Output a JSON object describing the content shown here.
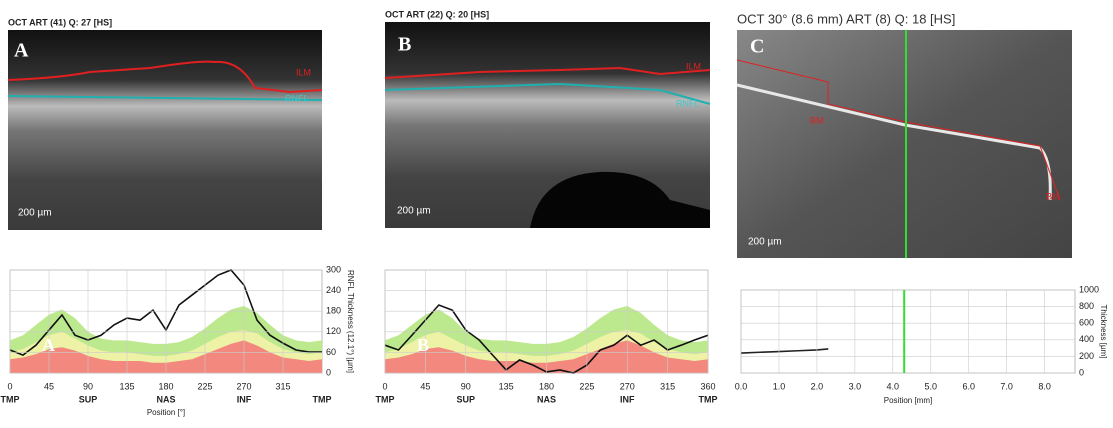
{
  "panels": [
    {
      "header": "OCT ART (41) Q: 27 [HS]",
      "letter": "A",
      "labels": [
        "ILM",
        "RNFL"
      ],
      "scale": "200 µm"
    },
    {
      "header": "OCT ART (22) Q: 20 [HS]",
      "letter": "B",
      "labels": [
        "ILM",
        "RNFL"
      ],
      "scale": "200 µm"
    },
    {
      "header": "OCT 30° (8.6 mm) ART (8) Q: 18 [HS]",
      "letter": "C",
      "labels": [
        "BM",
        "BM"
      ],
      "scale": "200 µm"
    }
  ],
  "chart_data": [
    {
      "type": "line",
      "annotation": "A",
      "xlim": [
        0,
        360
      ],
      "xticks": [
        0,
        45,
        90,
        135,
        180,
        225,
        270,
        315
      ],
      "xticks2": [
        {
          "value": 0,
          "label": "TMP"
        },
        {
          "value": 90,
          "label": "SUP"
        },
        {
          "value": 180,
          "label": "NAS"
        },
        {
          "value": 270,
          "label": "INF"
        },
        {
          "value": 360,
          "label": "TMP"
        }
      ],
      "x_label": "Position [°]",
      "y_label": "RNFL Thickness (12.1°) [µm]",
      "ylim": [
        0,
        300
      ],
      "yticks": [
        0,
        60,
        120,
        180,
        240,
        300
      ],
      "ytick_labels": true,
      "x": [
        0,
        15,
        30,
        45,
        60,
        75,
        90,
        105,
        120,
        135,
        150,
        165,
        180,
        195,
        210,
        225,
        240,
        255,
        270,
        285,
        300,
        315,
        330,
        345,
        360
      ],
      "series": [
        {
          "style": "area",
          "color": "#bde98e",
          "values": [
            95,
            110,
            140,
            170,
            185,
            160,
            120,
            100,
            95,
            95,
            90,
            85,
            85,
            90,
            105,
            130,
            160,
            185,
            195,
            175,
            140,
            110,
            95,
            90,
            95
          ]
        },
        {
          "style": "area",
          "color": "#eef2a6",
          "values": [
            60,
            70,
            90,
            110,
            120,
            100,
            80,
            65,
            60,
            60,
            55,
            50,
            50,
            55,
            65,
            85,
            105,
            120,
            125,
            115,
            90,
            70,
            60,
            55,
            60
          ]
        },
        {
          "style": "area",
          "color": "#f2887e",
          "values": [
            40,
            45,
            55,
            70,
            75,
            65,
            50,
            40,
            35,
            35,
            35,
            30,
            30,
            35,
            40,
            55,
            70,
            85,
            95,
            80,
            60,
            45,
            40,
            35,
            40
          ]
        },
        {
          "style": "line",
          "color": "#111111",
          "values": [
            67,
            52,
            81,
            125,
            169,
            110,
            96,
            110,
            140,
            160,
            154,
            183,
            125,
            198,
            227,
            256,
            285,
            300,
            256,
            154,
            110,
            87,
            67,
            61,
            61
          ]
        }
      ]
    },
    {
      "type": "line",
      "annotation": "B",
      "xlim": [
        0,
        360
      ],
      "xticks": [
        0,
        45,
        90,
        135,
        180,
        225,
        270,
        315,
        360
      ],
      "xticks2": [
        {
          "value": 0,
          "label": "TMP"
        },
        {
          "value": 90,
          "label": "SUP"
        },
        {
          "value": 180,
          "label": "NAS"
        },
        {
          "value": 270,
          "label": "INF"
        },
        {
          "value": 360,
          "label": "TMP"
        }
      ],
      "ylim": [
        0,
        300
      ],
      "yticks": [
        0,
        60,
        120,
        180,
        240,
        300
      ],
      "ytick_labels": false,
      "x": [
        0,
        15,
        30,
        45,
        60,
        75,
        90,
        105,
        120,
        135,
        150,
        165,
        180,
        195,
        210,
        225,
        240,
        255,
        270,
        285,
        300,
        315,
        330,
        345,
        360
      ],
      "series": [
        {
          "style": "area",
          "color": "#bde98e",
          "values": [
            95,
            110,
            140,
            170,
            185,
            160,
            120,
            100,
            95,
            95,
            90,
            85,
            85,
            90,
            105,
            130,
            160,
            185,
            195,
            175,
            140,
            110,
            95,
            90,
            95
          ]
        },
        {
          "style": "area",
          "color": "#eef2a6",
          "values": [
            60,
            70,
            90,
            110,
            120,
            100,
            80,
            65,
            60,
            60,
            55,
            50,
            50,
            55,
            65,
            85,
            105,
            120,
            125,
            115,
            90,
            70,
            60,
            55,
            60
          ]
        },
        {
          "style": "area",
          "color": "#f2887e",
          "values": [
            40,
            45,
            55,
            70,
            75,
            65,
            50,
            40,
            35,
            35,
            35,
            30,
            30,
            35,
            40,
            55,
            70,
            85,
            95,
            80,
            60,
            45,
            40,
            35,
            40
          ]
        },
        {
          "style": "line",
          "color": "#111111",
          "values": [
            81,
            67,
            110,
            154,
            198,
            183,
            125,
            96,
            52,
            9,
            38,
            23,
            3,
            9,
            0,
            23,
            67,
            81,
            110,
            81,
            96,
            67,
            81,
            96,
            110
          ]
        }
      ]
    },
    {
      "type": "line",
      "xlim": [
        0,
        8.8
      ],
      "xticks": [
        {
          "value": 0,
          "label": "0.0"
        },
        {
          "value": 1,
          "label": "1.0"
        },
        {
          "value": 2,
          "label": "2.0"
        },
        {
          "value": 3,
          "label": "3.0"
        },
        {
          "value": 4,
          "label": "4.0"
        },
        {
          "value": 5,
          "label": "5.0"
        },
        {
          "value": 6,
          "label": "6.0"
        },
        {
          "value": 7,
          "label": "7.0"
        },
        {
          "value": 8,
          "label": "8.0"
        }
      ],
      "x_label": "Position [mm]",
      "y_label": "Thickness [µm]",
      "ylim": [
        0,
        1000
      ],
      "yticks": [
        0,
        200,
        400,
        600,
        800,
        1000
      ],
      "ytick_labels": true,
      "cursor": 4.3,
      "cursor_color": "#33dd33",
      "series": [
        {
          "style": "line",
          "color": "#222222",
          "x": [
            0,
            0.5,
            1,
            1.5,
            2,
            2.3
          ],
          "values": [
            240,
            250,
            258,
            268,
            278,
            290
          ]
        }
      ]
    }
  ]
}
